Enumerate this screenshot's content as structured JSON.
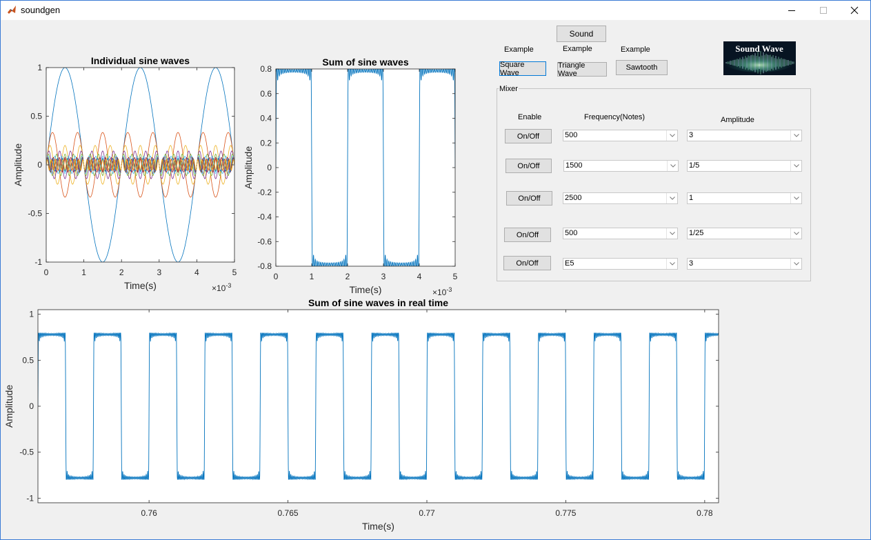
{
  "window": {
    "title": "soundgen"
  },
  "controls": {
    "sound_button": "Sound",
    "example_label": "Example",
    "square_button": "Square Wave",
    "triangle_button": "Triangle Wave",
    "sawtooth_button": "Sawtooth",
    "logo_text": "Sound Wave"
  },
  "mixer": {
    "title": "Mixer",
    "headers": {
      "enable": "Enable",
      "frequency": "Frequency(Notes)",
      "amplitude": "Amplitude"
    },
    "rows": [
      {
        "button": "On/Off",
        "frequency": "500",
        "amplitude": "3"
      },
      {
        "button": "On/Off",
        "frequency": "1500",
        "amplitude": "1/5"
      },
      {
        "button": "On/Off",
        "frequency": "2500",
        "amplitude": "1"
      },
      {
        "button": "On/Off",
        "frequency": "500",
        "amplitude": "1/25"
      },
      {
        "button": "On/Off",
        "frequency": "E5",
        "amplitude": "3"
      }
    ]
  },
  "colors": {
    "accent": "#0072bd",
    "line_palette": [
      "#0072bd",
      "#d95319",
      "#edb120",
      "#7e2f8e",
      "#77ac30",
      "#4dbeee",
      "#a2142f"
    ]
  },
  "chart_data": [
    {
      "type": "line",
      "title": "Individual sine waves",
      "xlabel": "Time(s)",
      "ylabel": "Amplitude",
      "x_exponent_label": "×10",
      "x_exponent": "-3",
      "xlim": [
        0,
        5
      ],
      "ylim": [
        -1,
        1
      ],
      "xticks": [
        "0",
        "1",
        "2",
        "3",
        "4",
        "5"
      ],
      "yticks": [
        "-1",
        "-0.5",
        "0",
        "0.5",
        "1"
      ],
      "series": [
        {
          "freq_khz": 0.5,
          "amp": 1
        },
        {
          "freq_khz": 1.5,
          "amp": 0.333
        },
        {
          "freq_khz": 2.5,
          "amp": 0.2
        },
        {
          "freq_khz": 3.5,
          "amp": 0.143
        },
        {
          "freq_khz": 4.5,
          "amp": 0.111
        },
        {
          "freq_khz": 5.5,
          "amp": 0.091
        },
        {
          "freq_khz": 6.5,
          "amp": 0.077
        },
        {
          "freq_khz": 7.5,
          "amp": 0.067
        },
        {
          "freq_khz": 8.5,
          "amp": 0.059
        },
        {
          "freq_khz": 9.5,
          "amp": 0.053
        }
      ]
    },
    {
      "type": "line",
      "title": "Sum of sine waves",
      "xlabel": "Time(s)",
      "ylabel": "Amplitude",
      "x_exponent_label": "×10",
      "x_exponent": "-3",
      "xlim": [
        0,
        5
      ],
      "ylim": [
        -0.8,
        0.8
      ],
      "xticks": [
        "0",
        "1",
        "2",
        "3",
        "4",
        "5"
      ],
      "yticks": [
        "-0.8",
        "-0.6",
        "-0.4",
        "-0.2",
        "0",
        "0.2",
        "0.4",
        "0.6",
        "0.8"
      ],
      "signal": {
        "shape": "square",
        "period_ms": 2,
        "high": 0.785,
        "low": -0.785
      }
    },
    {
      "type": "line",
      "title": "Sum of sine waves in real time",
      "xlabel": "Time(s)",
      "ylabel": "Amplitude",
      "xlim": [
        0.756,
        0.7805
      ],
      "ylim": [
        -1.05,
        1.05
      ],
      "xticks": [
        "0.76",
        "0.765",
        "0.77",
        "0.775",
        "0.78"
      ],
      "yticks": [
        "-1",
        "-0.5",
        "0",
        "0.5",
        "1"
      ],
      "signal": {
        "shape": "square",
        "period_s": 0.002,
        "high": 0.78,
        "low": -0.78
      }
    }
  ]
}
